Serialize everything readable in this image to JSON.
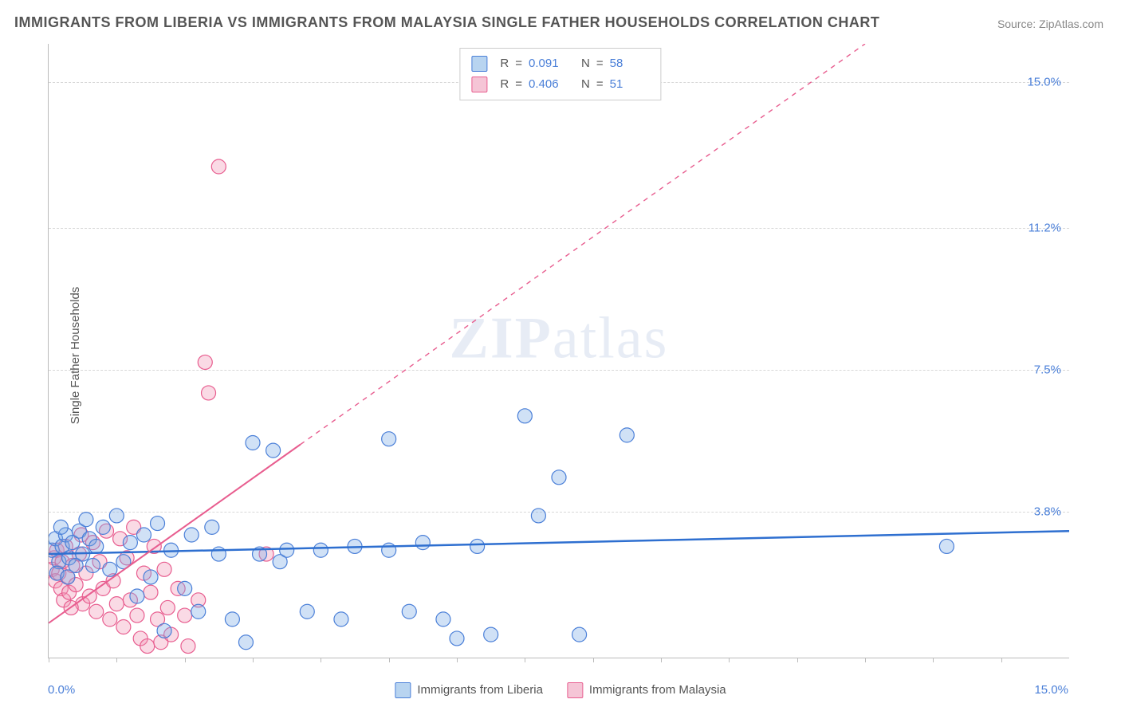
{
  "title": "IMMIGRANTS FROM LIBERIA VS IMMIGRANTS FROM MALAYSIA SINGLE FATHER HOUSEHOLDS CORRELATION CHART",
  "source_prefix": "Source: ",
  "source_name": "ZipAtlas.com",
  "ylabel": "Single Father Households",
  "watermark_a": "ZIP",
  "watermark_b": "atlas",
  "chart": {
    "type": "scatter",
    "xlim": [
      0,
      15
    ],
    "ylim": [
      0,
      16
    ],
    "y_ticks": [
      3.8,
      7.5,
      11.2,
      15.0
    ],
    "y_tick_labels": [
      "3.8%",
      "7.5%",
      "11.2%",
      "15.0%"
    ],
    "x_left_label": "0.0%",
    "x_right_label": "15.0%",
    "x_tick_positions": [
      0,
      1,
      2,
      3,
      4,
      5,
      6,
      7,
      8,
      9,
      10,
      11,
      12,
      13,
      14
    ],
    "marker_radius": 9,
    "background_color": "#ffffff",
    "grid_color": "#d8d8d8",
    "series": [
      {
        "name": "Immigrants from Liberia",
        "color_fill": "rgba(120,170,230,0.35)",
        "color_stroke": "#4a7fd8",
        "swatch_fill": "#b8d4f0",
        "swatch_border": "#4a7fd8",
        "R": "0.091",
        "N": "58",
        "regression": {
          "x1": 0,
          "y1": 2.7,
          "x2": 15,
          "y2": 3.3,
          "solid_until_x": 15,
          "color": "#2e6fd0",
          "width": 2.5
        },
        "points": [
          [
            0.05,
            2.8
          ],
          [
            0.1,
            3.1
          ],
          [
            0.15,
            2.5
          ],
          [
            0.2,
            2.9
          ],
          [
            0.25,
            3.2
          ],
          [
            0.3,
            2.6
          ],
          [
            0.35,
            3.0
          ],
          [
            0.4,
            2.4
          ],
          [
            0.45,
            3.3
          ],
          [
            0.5,
            2.7
          ],
          [
            0.6,
            3.1
          ],
          [
            0.7,
            2.9
          ],
          [
            0.8,
            3.4
          ],
          [
            0.9,
            2.3
          ],
          [
            1.0,
            3.7
          ],
          [
            1.1,
            2.5
          ],
          [
            1.2,
            3.0
          ],
          [
            1.3,
            1.6
          ],
          [
            1.4,
            3.2
          ],
          [
            1.5,
            2.1
          ],
          [
            1.6,
            3.5
          ],
          [
            1.7,
            0.7
          ],
          [
            1.8,
            2.8
          ],
          [
            2.0,
            1.8
          ],
          [
            2.1,
            3.2
          ],
          [
            2.2,
            1.2
          ],
          [
            2.4,
            3.4
          ],
          [
            2.5,
            2.7
          ],
          [
            2.7,
            1.0
          ],
          [
            2.9,
            0.4
          ],
          [
            3.0,
            5.6
          ],
          [
            3.1,
            2.7
          ],
          [
            3.3,
            5.4
          ],
          [
            3.4,
            2.5
          ],
          [
            3.5,
            2.8
          ],
          [
            3.8,
            1.2
          ],
          [
            4.0,
            2.8
          ],
          [
            4.3,
            1.0
          ],
          [
            4.5,
            2.9
          ],
          [
            5.0,
            5.7
          ],
          [
            5.0,
            2.8
          ],
          [
            5.3,
            1.2
          ],
          [
            5.5,
            3.0
          ],
          [
            5.8,
            1.0
          ],
          [
            6.0,
            0.5
          ],
          [
            6.3,
            2.9
          ],
          [
            6.5,
            0.6
          ],
          [
            7.0,
            6.3
          ],
          [
            7.2,
            3.7
          ],
          [
            7.5,
            4.7
          ],
          [
            7.8,
            0.6
          ],
          [
            8.5,
            5.8
          ],
          [
            13.2,
            2.9
          ],
          [
            0.12,
            2.2
          ],
          [
            0.18,
            3.4
          ],
          [
            0.28,
            2.1
          ],
          [
            0.55,
            3.6
          ],
          [
            0.65,
            2.4
          ]
        ]
      },
      {
        "name": "Immigrants from Malaysia",
        "color_fill": "rgba(240,150,180,0.35)",
        "color_stroke": "#e85d8f",
        "swatch_fill": "#f5c5d6",
        "swatch_border": "#e85d8f",
        "R": "0.406",
        "N": "51",
        "regression": {
          "x1": 0,
          "y1": 0.9,
          "x2": 12.0,
          "y2": 16.0,
          "solid_until_x": 3.7,
          "color": "#e85d8f",
          "width": 2
        },
        "points": [
          [
            0.05,
            2.3
          ],
          [
            0.08,
            2.6
          ],
          [
            0.1,
            2.0
          ],
          [
            0.12,
            2.8
          ],
          [
            0.15,
            2.2
          ],
          [
            0.18,
            1.8
          ],
          [
            0.2,
            2.5
          ],
          [
            0.22,
            1.5
          ],
          [
            0.25,
            2.9
          ],
          [
            0.28,
            2.1
          ],
          [
            0.3,
            1.7
          ],
          [
            0.35,
            2.4
          ],
          [
            0.4,
            1.9
          ],
          [
            0.45,
            2.7
          ],
          [
            0.5,
            1.4
          ],
          [
            0.55,
            2.2
          ],
          [
            0.6,
            1.6
          ],
          [
            0.65,
            3.0
          ],
          [
            0.7,
            1.2
          ],
          [
            0.75,
            2.5
          ],
          [
            0.8,
            1.8
          ],
          [
            0.85,
            3.3
          ],
          [
            0.9,
            1.0
          ],
          [
            0.95,
            2.0
          ],
          [
            1.0,
            1.4
          ],
          [
            1.05,
            3.1
          ],
          [
            1.1,
            0.8
          ],
          [
            1.15,
            2.6
          ],
          [
            1.2,
            1.5
          ],
          [
            1.25,
            3.4
          ],
          [
            1.3,
            1.1
          ],
          [
            1.35,
            0.5
          ],
          [
            1.4,
            2.2
          ],
          [
            1.45,
            0.3
          ],
          [
            1.5,
            1.7
          ],
          [
            1.55,
            2.9
          ],
          [
            1.6,
            1.0
          ],
          [
            1.65,
            0.4
          ],
          [
            1.7,
            2.3
          ],
          [
            1.75,
            1.3
          ],
          [
            1.8,
            0.6
          ],
          [
            1.9,
            1.8
          ],
          [
            2.0,
            1.1
          ],
          [
            2.05,
            0.3
          ],
          [
            2.2,
            1.5
          ],
          [
            2.3,
            7.7
          ],
          [
            2.35,
            6.9
          ],
          [
            2.5,
            12.8
          ],
          [
            3.2,
            2.7
          ],
          [
            0.33,
            1.3
          ],
          [
            0.48,
            3.2
          ]
        ]
      }
    ]
  },
  "legend_labels": {
    "R": "R",
    "eq": "=",
    "N": "N"
  }
}
